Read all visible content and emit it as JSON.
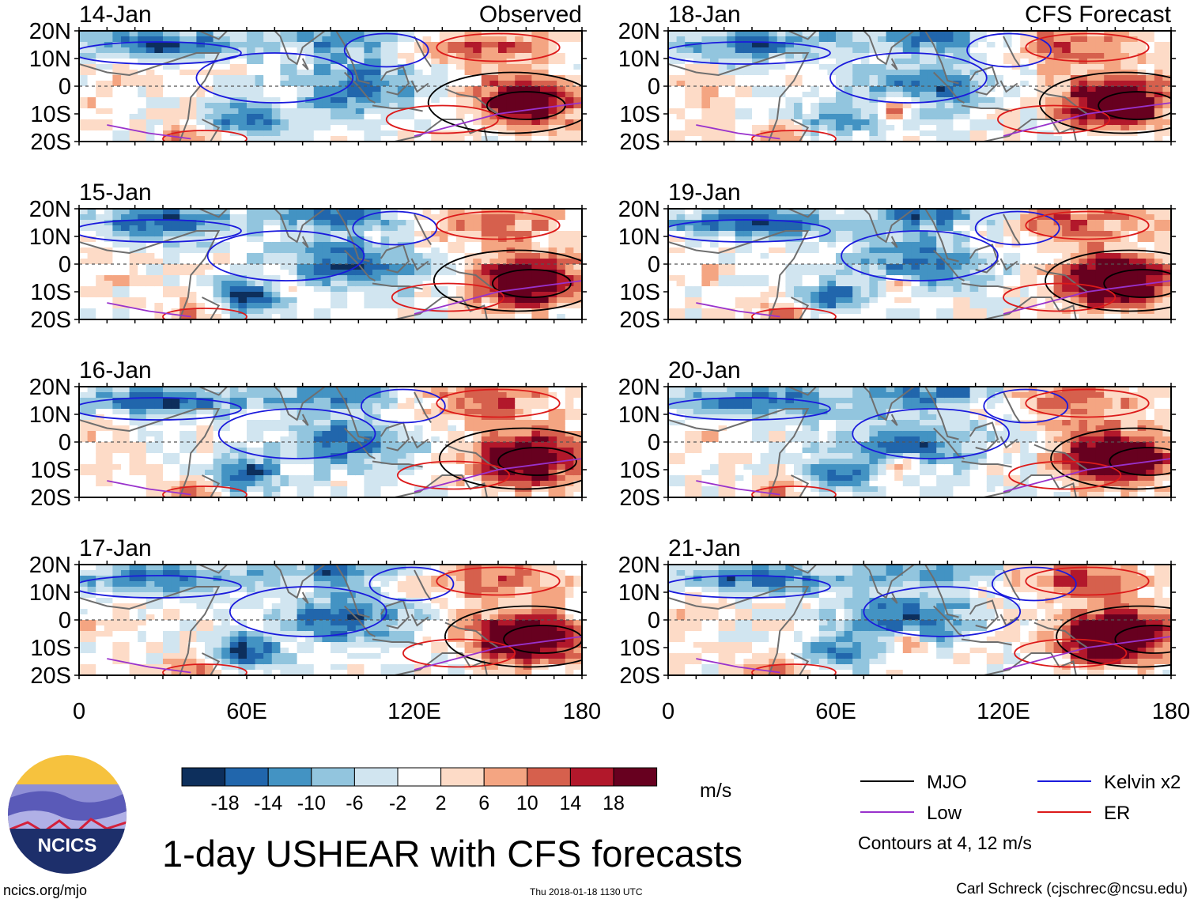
{
  "chart_data": {
    "type": "heatmap",
    "title": "1-day USHEAR with CFS forecasts",
    "units": "m/s",
    "xlim": [
      0,
      180
    ],
    "ylim": [
      -20,
      20
    ],
    "x_ticks": [
      {
        "value": 0,
        "label": "0"
      },
      {
        "value": 60,
        "label": "60E"
      },
      {
        "value": 120,
        "label": "120E"
      },
      {
        "value": 180,
        "label": "180"
      }
    ],
    "y_ticks": [
      {
        "value": 20,
        "label": "20N"
      },
      {
        "value": 10,
        "label": "10N"
      },
      {
        "value": 0,
        "label": "0"
      },
      {
        "value": -10,
        "label": "10S"
      },
      {
        "value": -20,
        "label": "20S"
      }
    ],
    "panels": [
      {
        "date": "14-Jan",
        "source": "Observed",
        "column": 0,
        "row": 0
      },
      {
        "date": "15-Jan",
        "source": "",
        "column": 0,
        "row": 1
      },
      {
        "date": "16-Jan",
        "source": "",
        "column": 0,
        "row": 2
      },
      {
        "date": "17-Jan",
        "source": "",
        "column": 0,
        "row": 3
      },
      {
        "date": "18-Jan",
        "source": "CFS Forecast",
        "column": 1,
        "row": 0
      },
      {
        "date": "19-Jan",
        "source": "",
        "column": 1,
        "row": 1
      },
      {
        "date": "20-Jan",
        "source": "",
        "column": 1,
        "row": 2
      },
      {
        "date": "21-Jan",
        "source": "",
        "column": 1,
        "row": 3
      }
    ],
    "colorbar": {
      "colors": [
        "#0d2f5c",
        "#2166ac",
        "#4393c3",
        "#92c5de",
        "#d1e5f0",
        "#ffffff",
        "#fddbc7",
        "#f4a582",
        "#d6604d",
        "#b2182b",
        "#67001f"
      ],
      "boundaries": [
        -18,
        -14,
        -10,
        -6,
        -2,
        2,
        6,
        10,
        14,
        18
      ],
      "labels": [
        "-18",
        "-14",
        "-10",
        "-6",
        "-2",
        "2",
        "6",
        "10",
        "14",
        "18"
      ]
    },
    "legend": {
      "items": [
        {
          "label": "MJO",
          "color": "#000000"
        },
        {
          "label": "Kelvin x2",
          "color": "#1a1adc"
        },
        {
          "label": "Low",
          "color": "#9932cc"
        },
        {
          "label": "ER",
          "color": "#dc1a1a"
        }
      ],
      "note": "Contours at 4, 12 m/s"
    }
  },
  "logo": {
    "text": "NCICS"
  },
  "footer": {
    "left": "ncics.org/mjo",
    "center": "Thu 2018-01-18 1130 UTC",
    "right": "Carl Schreck (cjschrec@ncsu.edu)"
  }
}
